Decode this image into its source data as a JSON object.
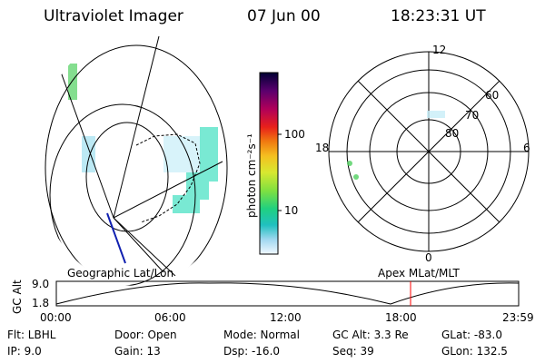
{
  "header": {
    "instrument": "Ultraviolet Imager",
    "date": "07 Jun 00",
    "time": "18:23:31 UT"
  },
  "colorbar": {
    "unit_label": "photon cm⁻²s⁻¹",
    "ticks": [
      "100",
      "10"
    ]
  },
  "polar_plot": {
    "mlt_labels": [
      "12",
      "18",
      "6",
      "0"
    ],
    "lat_labels": [
      "60",
      "70",
      "80"
    ]
  },
  "map_labels": {
    "left": "Geographic Lat/Lon",
    "right": "Apex MLat/MLT"
  },
  "altitude_plot": {
    "axis_label": "GC Alt",
    "y_ticks": [
      "9.0",
      "1.8"
    ],
    "x_ticks": [
      "00:00",
      "06:00",
      "12:00",
      "18:00",
      "23:59"
    ],
    "current_time_color": "#ff0000",
    "current_time_fraction": 0.766
  },
  "footer": {
    "row1": [
      "Flt: LBHL",
      "Door: Open",
      "Mode: Normal",
      "GC Alt: 3.3 Re",
      "GLat: -83.0"
    ],
    "row2": [
      "IP:  9.0",
      "Gain: 13",
      "Dsp:  -16.0",
      "Seq: 39",
      "GLon: 132.5"
    ]
  },
  "colors": {
    "colorbar_stops": [
      "#000033",
      "#5a006e",
      "#b0005a",
      "#e8201a",
      "#f07a10",
      "#f4c020",
      "#d8e830",
      "#80e040",
      "#20d080",
      "#20c0c0",
      "#a0d8f0",
      "#f0f8ff"
    ]
  }
}
